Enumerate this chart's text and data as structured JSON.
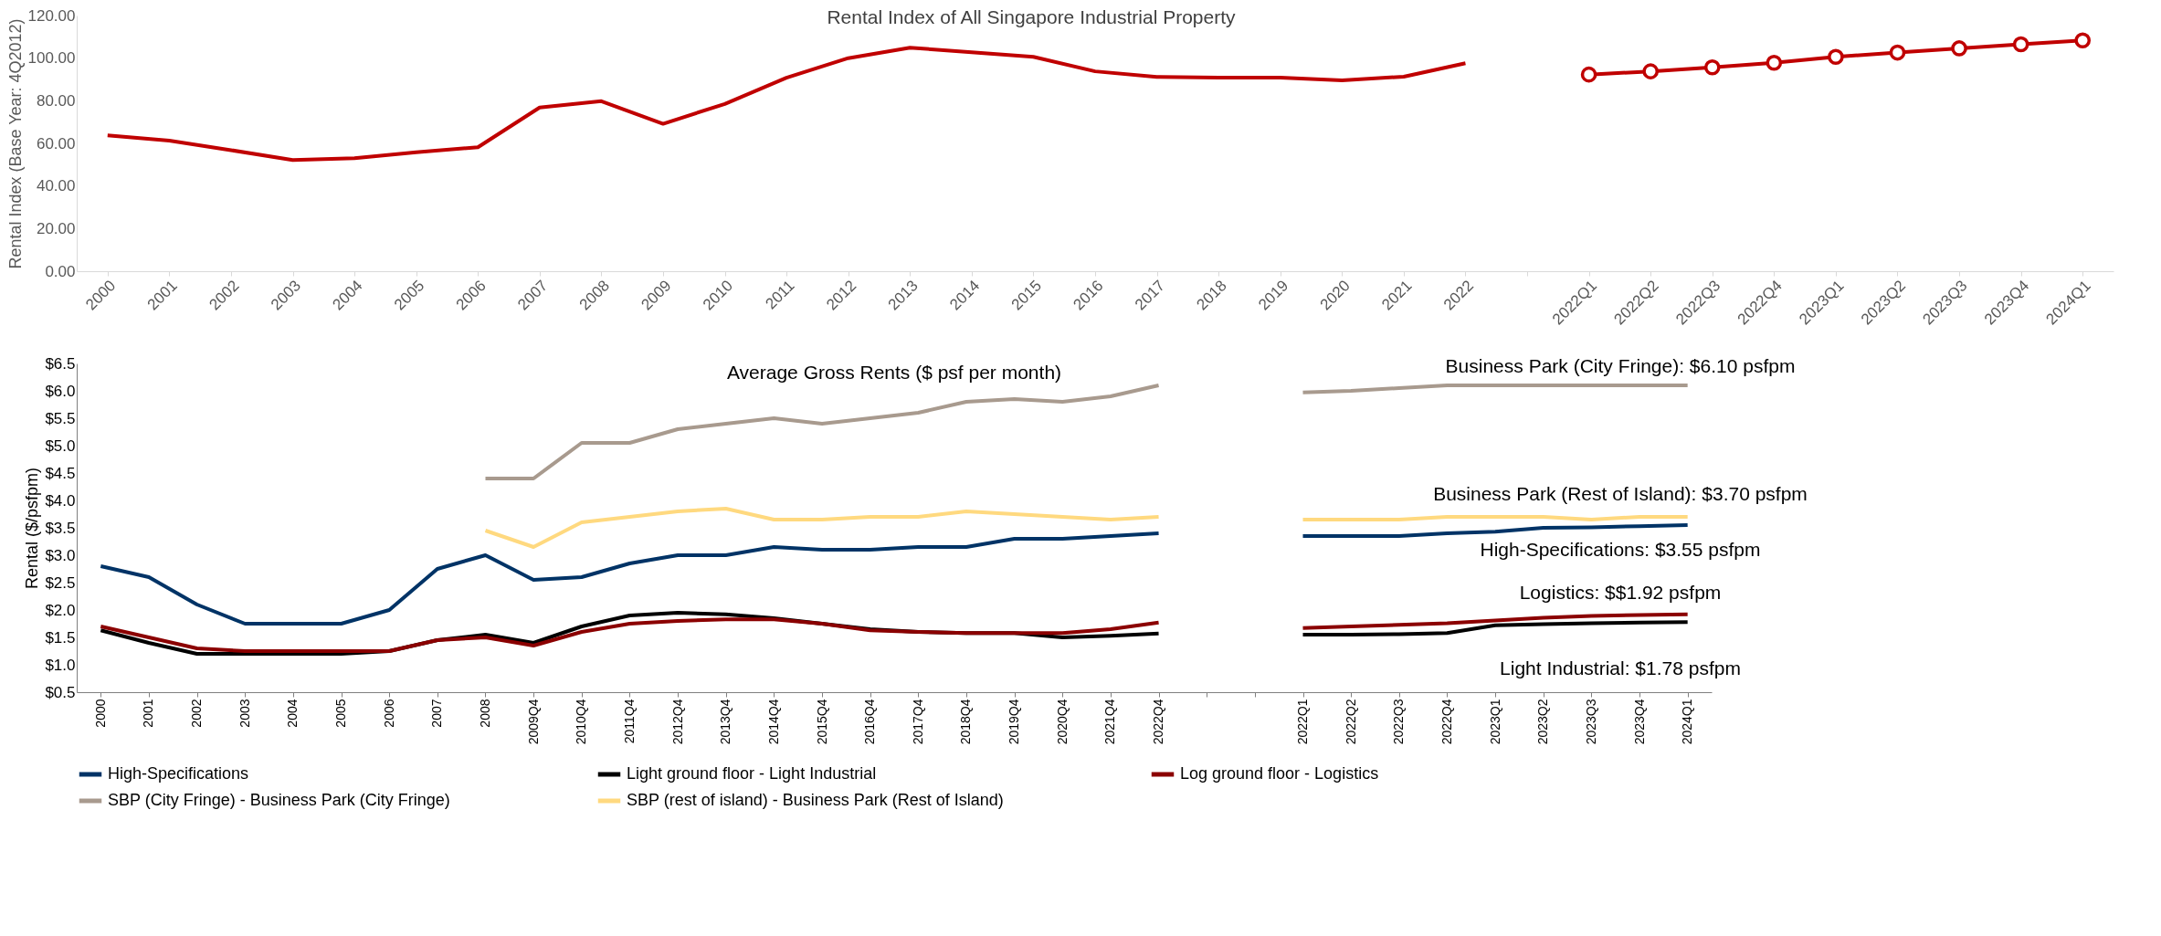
{
  "chart_data": [
    {
      "type": "line",
      "title": "Rental Index of All Singapore Industrial Property",
      "ylabel": "Rental Index (Base Year: 4Q2012)",
      "categories": [
        "2000",
        "2001",
        "2002",
        "2003",
        "2004",
        "2005",
        "2006",
        "2007",
        "2008",
        "2009",
        "2010",
        "2011",
        "2012",
        "2013",
        "2014",
        "2015",
        "2016",
        "2017",
        "2018",
        "2019",
        "2020",
        "2021",
        "2022",
        null,
        "2022Q1",
        "2022Q2",
        "2022Q3",
        "2022Q4",
        "2023Q1",
        "2023Q2",
        "2023Q3",
        "2023Q4",
        "2024Q1"
      ],
      "series": [
        {
          "color": "#c00000",
          "values": [
            63.8,
            61.3,
            56.8,
            52.2,
            53.0,
            55.8,
            58.2,
            76.8,
            79.8,
            69.2,
            78.5,
            90.8,
            100.0,
            104.9,
            102.8,
            100.6,
            93.8,
            91.2,
            90.9,
            90.9,
            89.6,
            91.3,
            97.6,
            null,
            null,
            null,
            null,
            null,
            null,
            null,
            null,
            null,
            null
          ]
        },
        {
          "color": "#c00000",
          "marker": "circle",
          "values": [
            null,
            null,
            null,
            null,
            null,
            null,
            null,
            null,
            null,
            null,
            null,
            null,
            null,
            null,
            null,
            null,
            null,
            null,
            null,
            null,
            null,
            null,
            null,
            null,
            92.3,
            93.8,
            95.7,
            97.8,
            100.6,
            102.6,
            104.6,
            106.5,
            108.3
          ]
        }
      ],
      "ylim": [
        0,
        120
      ],
      "yticks": [
        {
          "value": 0,
          "label": "0.00"
        },
        {
          "value": 20,
          "label": "20.00"
        },
        {
          "value": 40,
          "label": "40.00"
        },
        {
          "value": 60,
          "label": "60.00"
        },
        {
          "value": 80,
          "label": "80.00"
        },
        {
          "value": 100,
          "label": "100.00"
        },
        {
          "value": 120,
          "label": "120.00"
        }
      ],
      "grid": false,
      "legend": false
    },
    {
      "type": "line",
      "title": "Average Gross Rents ($ psf per month)",
      "ylabel": "Rental ($/psfpm)",
      "categories": [
        "2000",
        "2001",
        "2002",
        "2003",
        "2004",
        "2005",
        "2006",
        "2007",
        "2008",
        "2009Q4",
        "2010Q4",
        "2011Q4",
        "2012Q4",
        "2013Q4",
        "2014Q4",
        "2015Q4",
        "2016Q4",
        "2017Q4",
        "2018Q4",
        "2019Q4",
        "2020Q4",
        "2021Q4",
        "2022Q4",
        null,
        null,
        "2022Q1",
        "2022Q2",
        "2022Q3",
        "2022Q4",
        "2023Q1",
        "2023Q2",
        "2023Q3",
        "2023Q4",
        "2024Q1"
      ],
      "series": [
        {
          "name": "High-Specifications",
          "color": "#003366",
          "values": [
            2.8,
            2.6,
            2.1,
            1.75,
            1.75,
            1.75,
            2.0,
            2.75,
            3.0,
            2.55,
            2.6,
            2.85,
            3.0,
            3.0,
            3.15,
            3.1,
            3.1,
            3.15,
            3.15,
            3.3,
            3.3,
            3.35,
            3.4,
            null,
            null,
            3.35,
            3.35,
            3.35,
            3.4,
            3.43,
            3.5,
            3.51,
            3.53,
            3.55
          ]
        },
        {
          "name": "Light ground floor - Light Industrial",
          "color": "#000000",
          "values": [
            1.63,
            1.4,
            1.2,
            1.2,
            1.2,
            1.2,
            1.25,
            1.45,
            1.55,
            1.4,
            1.7,
            1.9,
            1.95,
            1.92,
            1.85,
            1.75,
            1.65,
            1.6,
            1.58,
            1.58,
            1.5,
            1.53,
            1.57,
            null,
            null,
            1.55,
            1.55,
            1.56,
            1.58,
            1.72,
            1.74,
            1.76,
            1.77,
            1.78
          ]
        },
        {
          "name": "Log ground floor - Logistics",
          "color": "#8b0000",
          "values": [
            1.7,
            1.5,
            1.3,
            1.25,
            1.25,
            1.25,
            1.25,
            1.45,
            1.5,
            1.35,
            1.6,
            1.75,
            1.8,
            1.83,
            1.83,
            1.75,
            1.63,
            1.6,
            1.58,
            1.58,
            1.58,
            1.65,
            1.77,
            null,
            null,
            1.67,
            1.7,
            1.73,
            1.76,
            1.81,
            1.86,
            1.89,
            1.91,
            1.92
          ]
        },
        {
          "name": "SBP (City Fringe) - Business Park (City Fringe)",
          "color": "#a89a8e",
          "values": [
            null,
            null,
            null,
            null,
            null,
            null,
            null,
            null,
            4.4,
            4.4,
            5.05,
            5.05,
            5.3,
            5.4,
            5.5,
            5.4,
            5.5,
            5.6,
            5.8,
            5.85,
            5.8,
            5.9,
            6.1,
            null,
            null,
            5.97,
            6.0,
            6.05,
            6.1,
            6.1,
            6.1,
            6.1,
            6.1,
            6.1
          ]
        },
        {
          "name": "SBP (rest of island) - Business Park (Rest of Island)",
          "color": "#ffd97f",
          "values": [
            null,
            null,
            null,
            null,
            null,
            null,
            null,
            null,
            3.45,
            3.15,
            3.6,
            3.7,
            3.8,
            3.85,
            3.65,
            3.65,
            3.7,
            3.7,
            3.8,
            3.75,
            3.7,
            3.65,
            3.7,
            null,
            null,
            3.65,
            3.65,
            3.65,
            3.7,
            3.7,
            3.7,
            3.65,
            3.7,
            3.7
          ]
        }
      ],
      "annotations": [
        "Business Park (City Fringe): $6.10 psfpm",
        "Business Park (Rest of Island): $3.70 psfpm",
        "High-Specifications: $3.55 psfpm",
        "Logistics: $$1.92 psfpm",
        "Light Industrial: $1.78 psfpm"
      ],
      "ylim": [
        0.5,
        6.5
      ],
      "yticks": [
        {
          "value": 0.5,
          "label": "$0.5"
        },
        {
          "value": 1,
          "label": "$1.0"
        },
        {
          "value": 1.5,
          "label": "$1.5"
        },
        {
          "value": 2,
          "label": "$2.0"
        },
        {
          "value": 2.5,
          "label": "$2.5"
        },
        {
          "value": 3,
          "label": "$3.0"
        },
        {
          "value": 3.5,
          "label": "$3.5"
        },
        {
          "value": 4,
          "label": "$4.0"
        },
        {
          "value": 4.5,
          "label": "$4.5"
        },
        {
          "value": 5,
          "label": "$5.0"
        },
        {
          "value": 5.5,
          "label": "$5.5"
        },
        {
          "value": 6,
          "label": "$6.0"
        },
        {
          "value": 6.5,
          "label": "$6.5"
        }
      ],
      "grid": false,
      "legend": "bottom"
    }
  ]
}
